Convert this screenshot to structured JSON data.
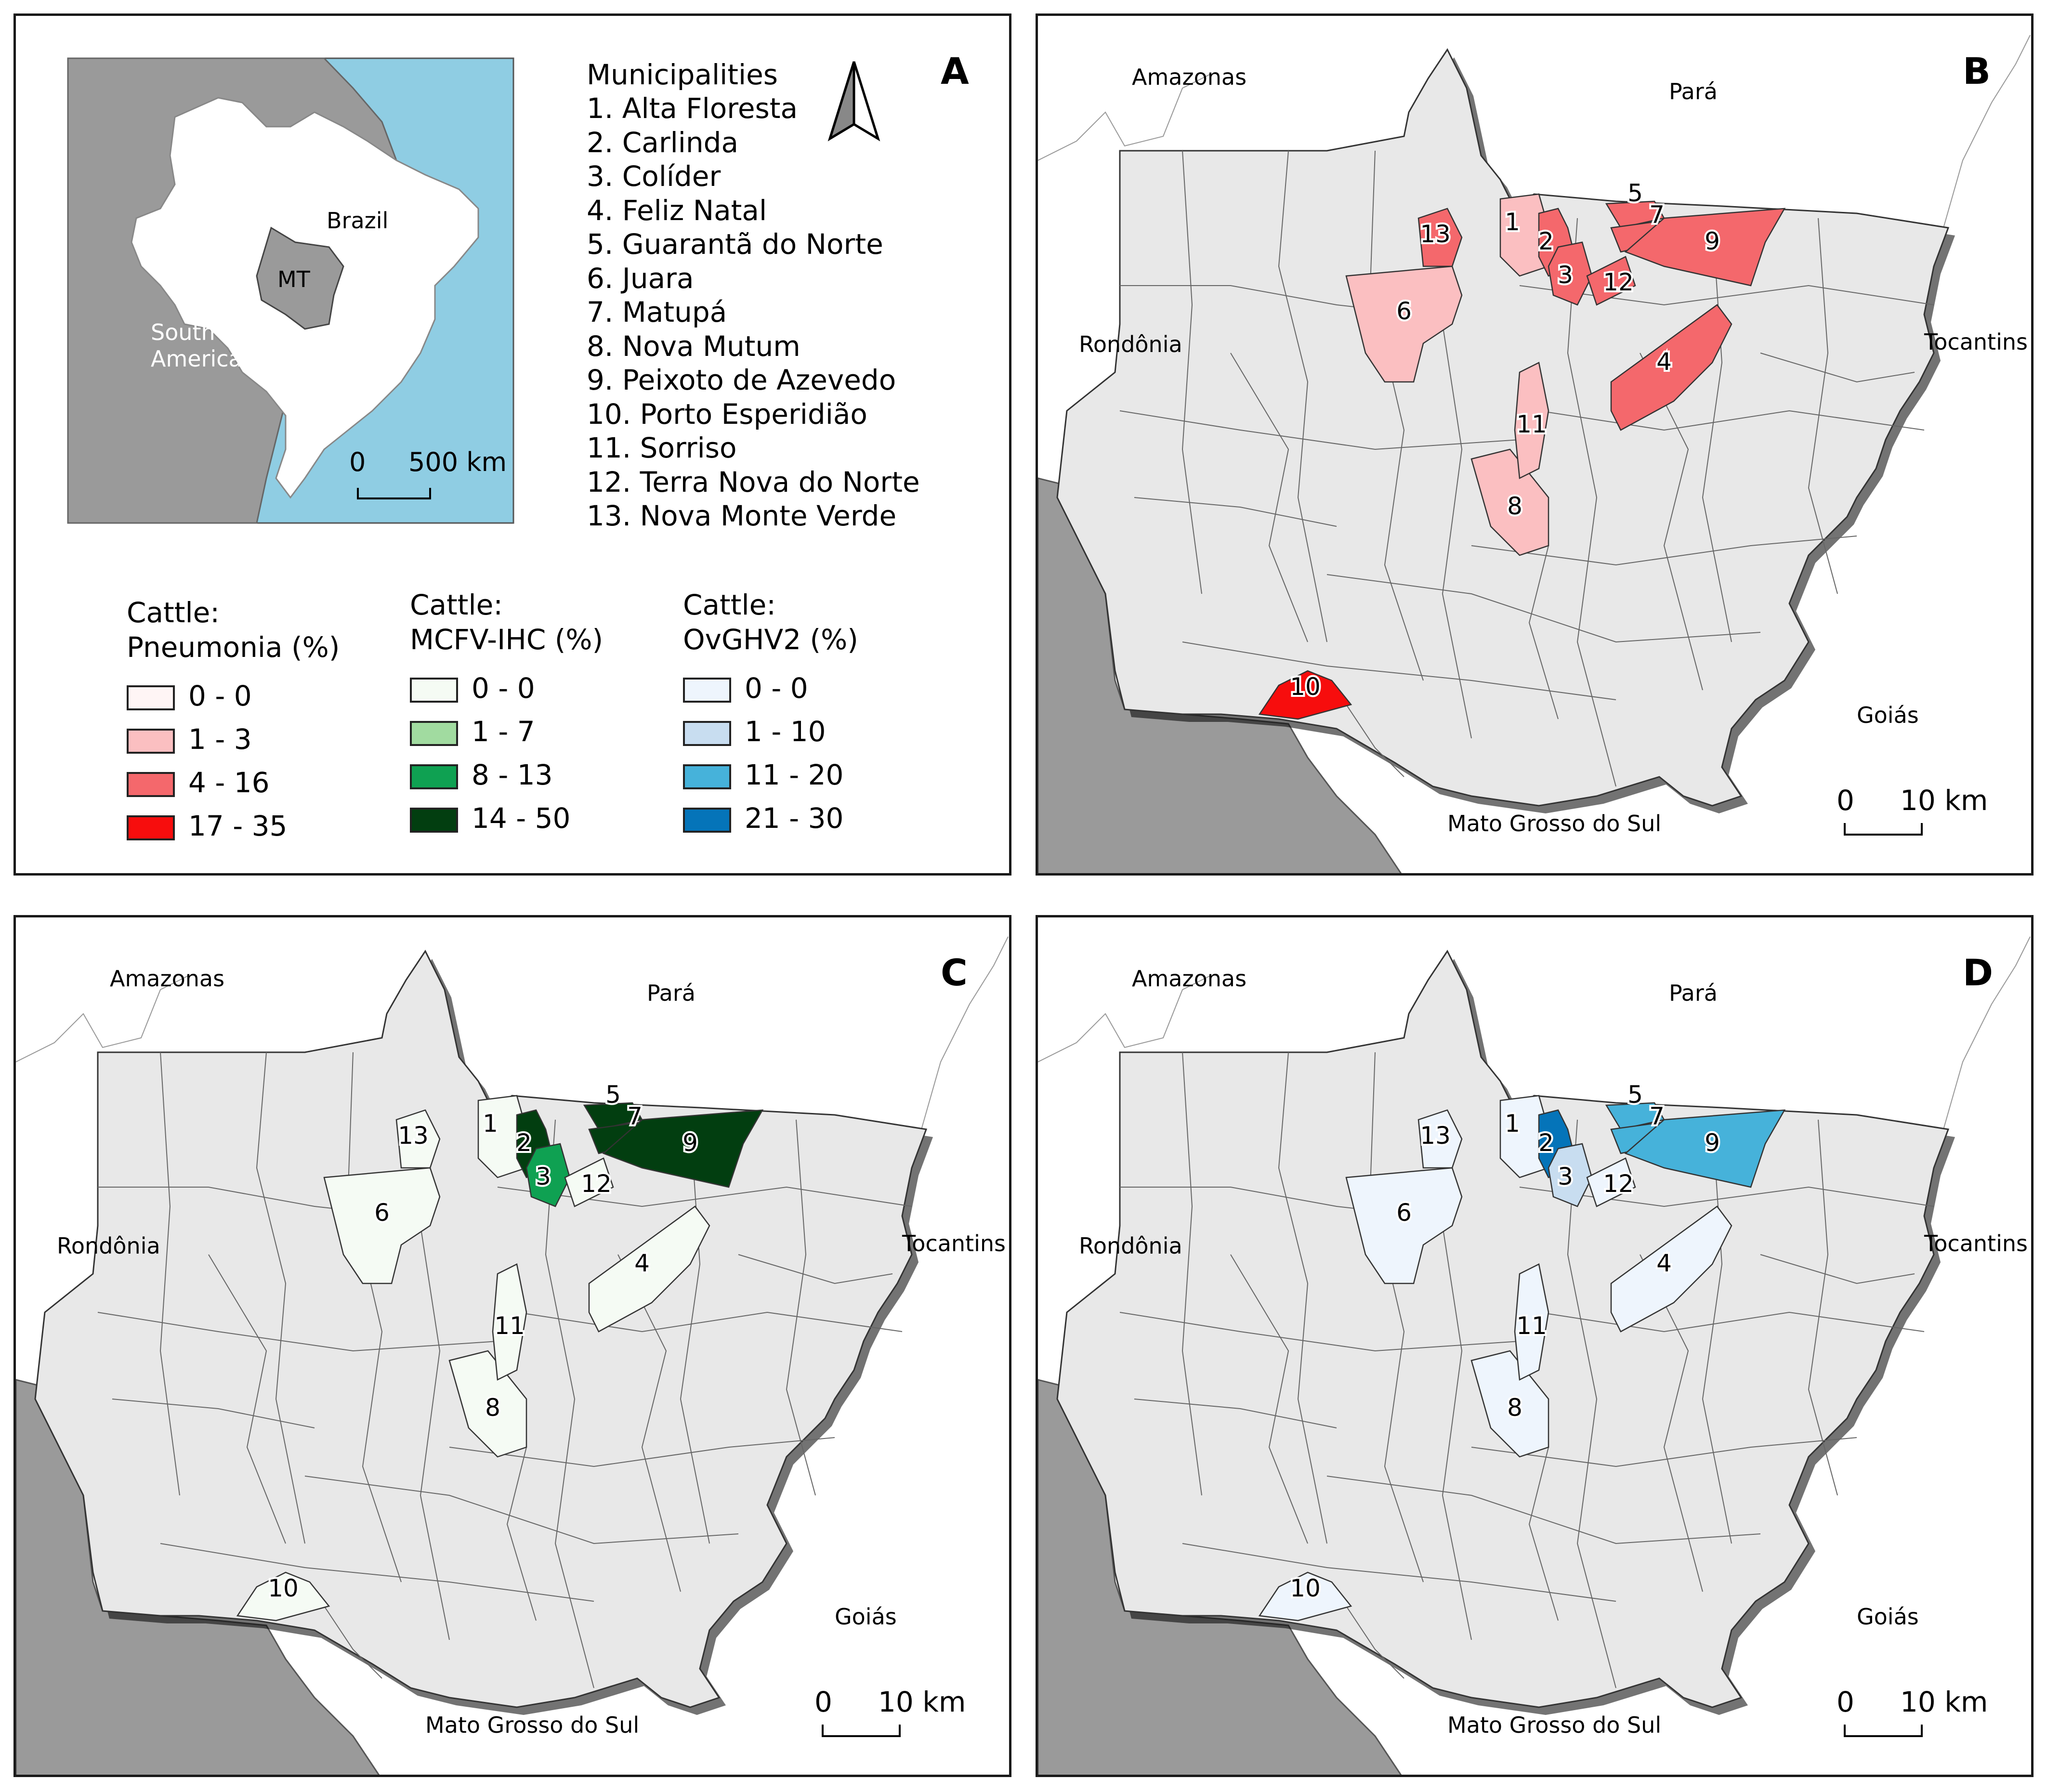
{
  "panelA": {
    "letter": "A",
    "inset": {
      "brazil_label": "Brazil",
      "mt_label": "MT",
      "south_label": "South",
      "america_label": "America",
      "scale_zero": "0",
      "scale_max": "500 km"
    },
    "municipalities_title": "Municipalities",
    "municipalities": [
      "1. Alta Floresta",
      "2. Carlinda",
      "3. Colíder",
      "4. Feliz Natal",
      "5. Guarantã do Norte",
      "6. Juara",
      "7. Matupá",
      "8. Nova Mutum",
      "9. Peixoto de Azevedo",
      "10. Porto Esperidião",
      "11. Sorriso",
      "12. Terra Nova do Norte",
      "13. Nova Monte Verde"
    ],
    "legends": [
      {
        "title_line1": "Cattle:",
        "title_line2": "Pneumonia (%)",
        "classes": [
          {
            "label": "0 - 0",
            "color": "#fff5f5"
          },
          {
            "label": "1 - 3",
            "color": "#fbbfc1"
          },
          {
            "label": "4 - 16",
            "color": "#f4686c"
          },
          {
            "label": "17 - 35",
            "color": "#f70d0d"
          }
        ]
      },
      {
        "title_line1": "Cattle:",
        "title_line2": "MCFV-IHC (%)",
        "classes": [
          {
            "label": "0 - 0",
            "color": "#f5fbf4"
          },
          {
            "label": "1 - 7",
            "color": "#a1dba0"
          },
          {
            "label": "8 - 13",
            "color": "#0fa152"
          },
          {
            "label": "14 - 50",
            "color": "#023e10"
          }
        ]
      },
      {
        "title_line1": "Cattle:",
        "title_line2": "OvGHV2 (%)",
        "classes": [
          {
            "label": "0 - 0",
            "color": "#eef5fd"
          },
          {
            "label": "1 - 10",
            "color": "#c8ddf0"
          },
          {
            "label": "11 - 20",
            "color": "#46b2da"
          },
          {
            "label": "21 - 30",
            "color": "#0574b9"
          }
        ]
      }
    ]
  },
  "maps": [
    {
      "letter": "B",
      "variable": "Pneumonia",
      "labels": {
        "amazonas": "Amazonas",
        "para": "Pará",
        "rondonia": "Rondônia",
        "tocantins": "Tocantins",
        "goias": "Goiás",
        "mato_grosso_do_sul": "Mato Grosso do Sul"
      },
      "scale_zero": "0",
      "scale_max": "10 km",
      "muni_colors": {
        "1": "#fbbfc1",
        "2": "#f4686c",
        "3": "#f4686c",
        "4": "#f4686c",
        "5": "#f4686c",
        "6": "#fbbfc1",
        "7": "#f4686c",
        "8": "#fbbfc1",
        "9": "#f4686c",
        "10": "#f70d0d",
        "11": "#fbbfc1",
        "12": "#f4686c",
        "13": "#f4686c"
      }
    },
    {
      "letter": "C",
      "variable": "MCFV-IHC",
      "labels": {
        "amazonas": "Amazonas",
        "para": "Pará",
        "rondonia": "Rondônia",
        "tocantins": "Tocantins",
        "goias": "Goiás",
        "mato_grosso_do_sul": "Mato Grosso do Sul"
      },
      "scale_zero": "0",
      "scale_max": "10 km",
      "muni_colors": {
        "1": "#f5fbf4",
        "2": "#023e10",
        "3": "#0fa152",
        "4": "#f5fbf4",
        "5": "#023e10",
        "6": "#f5fbf4",
        "7": "#023e10",
        "8": "#f5fbf4",
        "9": "#023e10",
        "10": "#f5fbf4",
        "11": "#f5fbf4",
        "12": "#f5fbf4",
        "13": "#f5fbf4"
      }
    },
    {
      "letter": "D",
      "variable": "OvGHV2",
      "labels": {
        "amazonas": "Amazonas",
        "para": "Pará",
        "rondonia": "Rondônia",
        "tocantins": "Tocantins",
        "goias": "Goiás",
        "mato_grosso_do_sul": "Mato Grosso do Sul"
      },
      "scale_zero": "0",
      "scale_max": "10 km",
      "muni_colors": {
        "1": "#eef5fd",
        "2": "#0574b9",
        "3": "#c8ddf0",
        "4": "#eef5fd",
        "5": "#46b2da",
        "6": "#eef5fd",
        "7": "#46b2da",
        "8": "#eef5fd",
        "9": "#46b2da",
        "10": "#eef5fd",
        "11": "#eef5fd",
        "12": "#eef5fd",
        "13": "#eef5fd"
      }
    }
  ],
  "muni_numbers": [
    "1",
    "2",
    "3",
    "4",
    "5",
    "6",
    "7",
    "8",
    "9",
    "10",
    "11",
    "12",
    "13"
  ],
  "base_fill": "#e8e8e8",
  "neighbor_fill": "#9a9a9a",
  "ocean_fill": "#8fcde3"
}
